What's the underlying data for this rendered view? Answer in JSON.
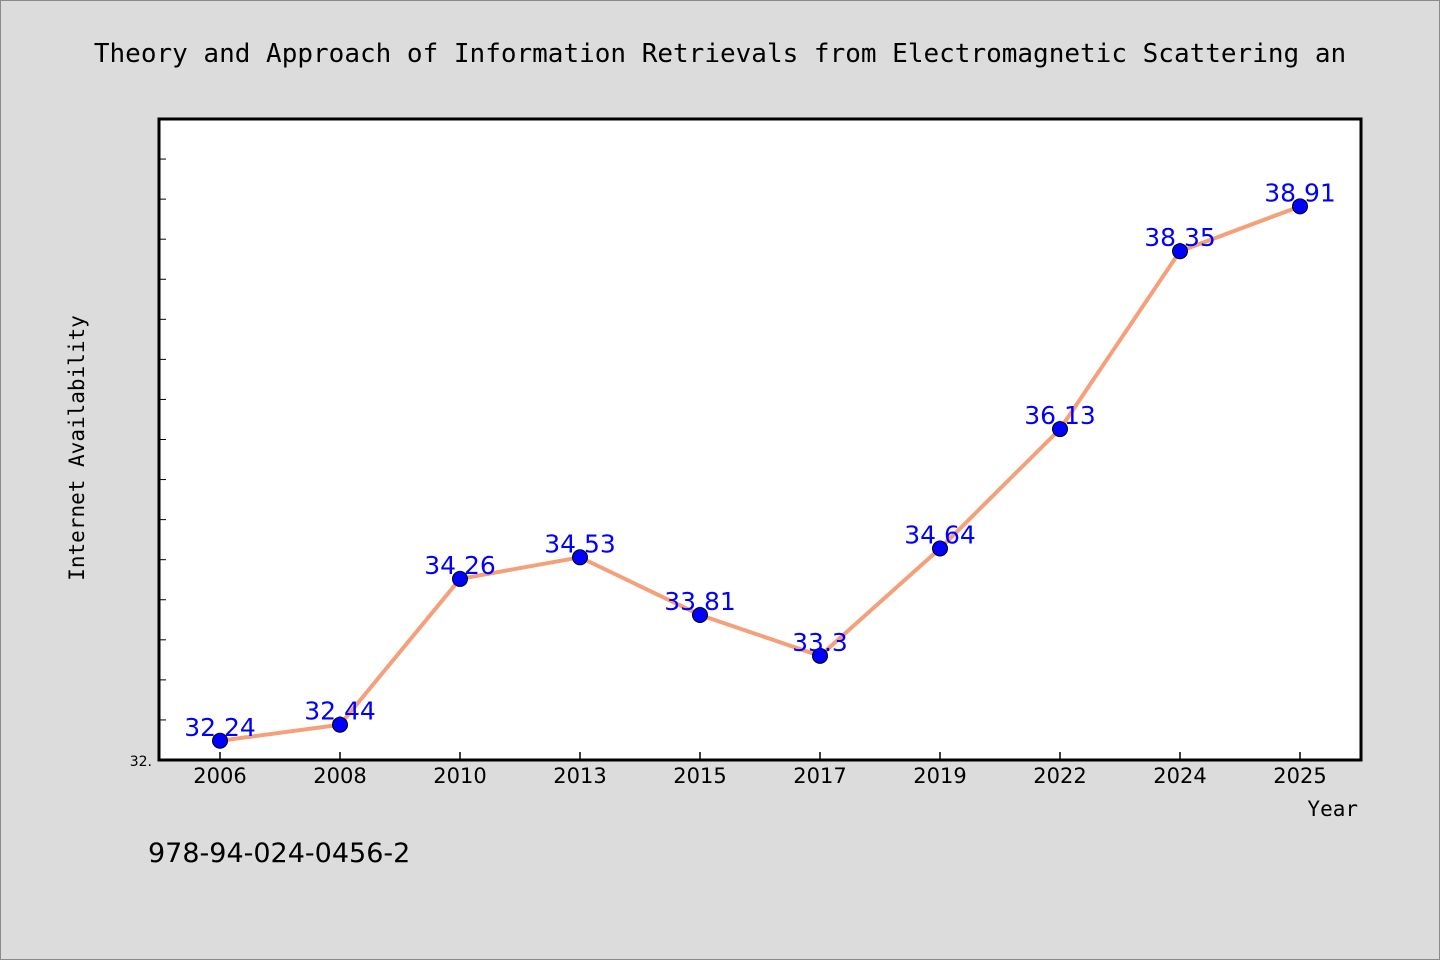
{
  "chart_data": {
    "type": "line",
    "title": "Theory and Approach of Information Retrievals from Electromagnetic Scattering an",
    "xlabel": "Year",
    "ylabel": "Internet Availability",
    "categories": [
      "2006",
      "2008",
      "2010",
      "2013",
      "2015",
      "2017",
      "2019",
      "2022",
      "2024",
      "2025"
    ],
    "series": [
      {
        "values": [
          32.24,
          32.44,
          34.26,
          34.53,
          33.81,
          33.3,
          34.64,
          36.13,
          38.35,
          38.91
        ],
        "labels": [
          "32.24",
          "32.44",
          "34.26",
          "34.53",
          "33.81",
          "33.3",
          "34.64",
          "36.13",
          "38.35",
          "38.91"
        ],
        "line_color": "#f4a07a",
        "marker_color": "#0000ff"
      }
    ],
    "ylim": [
      32.0,
      40.0
    ],
    "y_tick_label": "32.",
    "grid": false,
    "legend": "none"
  },
  "footer_text": "978-94-024-0456-2"
}
